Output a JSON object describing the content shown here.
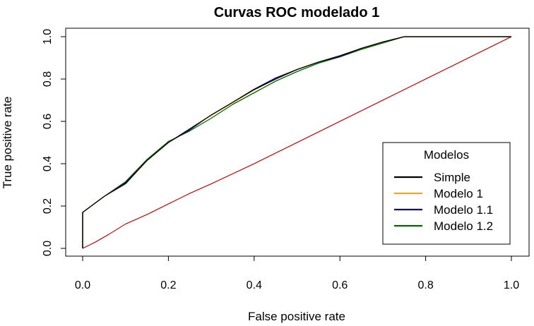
{
  "chart_data": {
    "type": "line",
    "title": "Curvas ROC modelado 1",
    "xlabel": "False positive rate",
    "ylabel": "True positive rate",
    "xlim": [
      0,
      1
    ],
    "ylim": [
      0,
      1
    ],
    "x_ticks": [
      "0.0",
      "0.2",
      "0.4",
      "0.6",
      "0.8",
      "1.0"
    ],
    "y_ticks": [
      "0.0",
      "0.2",
      "0.4",
      "0.6",
      "0.8",
      "1.0"
    ],
    "grid": false,
    "legend": {
      "title": "Modelos",
      "position": "bottom-right",
      "entries": [
        "Simple",
        "Modelo 1",
        "Modelo 1.1",
        "Modelo 1.2"
      ]
    },
    "series": [
      {
        "name": "Simple",
        "color": "#000000",
        "points": [
          [
            0,
            0
          ],
          [
            0,
            0.17
          ],
          [
            0.02,
            0.2
          ],
          [
            0.05,
            0.245
          ],
          [
            0.1,
            0.31
          ],
          [
            0.15,
            0.415
          ],
          [
            0.2,
            0.5
          ],
          [
            0.25,
            0.565
          ],
          [
            0.3,
            0.63
          ],
          [
            0.35,
            0.69
          ],
          [
            0.4,
            0.75
          ],
          [
            0.45,
            0.8
          ],
          [
            0.5,
            0.845
          ],
          [
            0.55,
            0.88
          ],
          [
            0.6,
            0.91
          ],
          [
            0.65,
            0.945
          ],
          [
            0.7,
            0.975
          ],
          [
            0.75,
            1
          ],
          [
            1,
            1
          ]
        ]
      },
      {
        "name": "Modelo 1",
        "color": "#FFA500",
        "points": [
          [
            0,
            0
          ],
          [
            0,
            0.17
          ],
          [
            0.02,
            0.2
          ],
          [
            0.05,
            0.245
          ],
          [
            0.1,
            0.31
          ],
          [
            0.15,
            0.415
          ],
          [
            0.2,
            0.5
          ],
          [
            0.25,
            0.565
          ],
          [
            0.3,
            0.628
          ],
          [
            0.35,
            0.688
          ],
          [
            0.4,
            0.748
          ],
          [
            0.45,
            0.8
          ],
          [
            0.5,
            0.845
          ],
          [
            0.55,
            0.88
          ],
          [
            0.6,
            0.91
          ],
          [
            0.65,
            0.945
          ],
          [
            0.7,
            0.975
          ],
          [
            0.75,
            1
          ],
          [
            1,
            1
          ]
        ]
      },
      {
        "name": "Modelo 1.1",
        "color": "#000080",
        "points": [
          [
            0,
            0
          ],
          [
            0,
            0.17
          ],
          [
            0.02,
            0.2
          ],
          [
            0.05,
            0.245
          ],
          [
            0.1,
            0.305
          ],
          [
            0.15,
            0.415
          ],
          [
            0.2,
            0.5
          ],
          [
            0.25,
            0.56
          ],
          [
            0.3,
            0.63
          ],
          [
            0.35,
            0.69
          ],
          [
            0.4,
            0.752
          ],
          [
            0.45,
            0.805
          ],
          [
            0.5,
            0.845
          ],
          [
            0.55,
            0.88
          ],
          [
            0.6,
            0.905
          ],
          [
            0.65,
            0.945
          ],
          [
            0.7,
            0.975
          ],
          [
            0.75,
            1
          ],
          [
            1,
            1
          ]
        ]
      },
      {
        "name": "Modelo 1.2",
        "color": "#006400",
        "points": [
          [
            0,
            0
          ],
          [
            0,
            0.17
          ],
          [
            0.02,
            0.2
          ],
          [
            0.05,
            0.245
          ],
          [
            0.1,
            0.315
          ],
          [
            0.15,
            0.42
          ],
          [
            0.2,
            0.505
          ],
          [
            0.25,
            0.555
          ],
          [
            0.3,
            0.615
          ],
          [
            0.35,
            0.68
          ],
          [
            0.4,
            0.735
          ],
          [
            0.45,
            0.79
          ],
          [
            0.5,
            0.835
          ],
          [
            0.55,
            0.875
          ],
          [
            0.6,
            0.905
          ],
          [
            0.65,
            0.94
          ],
          [
            0.7,
            0.97
          ],
          [
            0.75,
            1
          ],
          [
            1,
            1
          ]
        ]
      },
      {
        "name": "",
        "color": "#B22222",
        "points": [
          [
            0,
            0
          ],
          [
            0.03,
            0.03
          ],
          [
            0.06,
            0.065
          ],
          [
            0.1,
            0.115
          ],
          [
            0.15,
            0.16
          ],
          [
            0.2,
            0.21
          ],
          [
            0.25,
            0.26
          ],
          [
            0.3,
            0.305
          ],
          [
            0.4,
            0.4
          ],
          [
            0.5,
            0.5
          ],
          [
            0.6,
            0.6
          ],
          [
            0.7,
            0.7
          ],
          [
            0.8,
            0.8
          ],
          [
            0.9,
            0.9
          ],
          [
            0.95,
            0.95
          ],
          [
            1,
            1
          ]
        ]
      }
    ]
  }
}
